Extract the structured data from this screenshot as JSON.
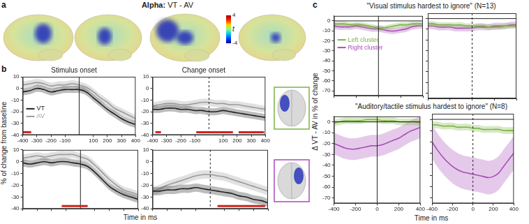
{
  "chart_data": [
    {
      "panel": "a",
      "type": "brain_map",
      "title": "Alpha: VT - AV",
      "colorbar": {
        "range": [
          -4,
          4
        ],
        "ticks": [
          -4,
          4
        ],
        "label": "t"
      }
    },
    {
      "panel": "b",
      "type": "line",
      "title": "Stimulus onset",
      "ylabel": "% of change from baseline",
      "xlabel": "Time in ms",
      "legend": "left",
      "x": [
        -400,
        -350,
        -300,
        -250,
        -200,
        -150,
        -100,
        -50,
        0,
        50,
        100,
        150,
        200,
        250,
        300,
        350,
        400
      ],
      "xlim": [
        -400,
        400
      ],
      "xticks": [
        -400,
        -300,
        -200,
        -100,
        100,
        200,
        300,
        400
      ],
      "ylim": [
        -40,
        10
      ],
      "yticks": [
        -40,
        -30,
        -20,
        -10,
        0,
        10
      ],
      "vlines": [
        {
          "x": 0,
          "line_style": "solid"
        }
      ],
      "significance": [
        [
          -400,
          -340
        ]
      ],
      "series": [
        {
          "name": "VT",
          "color": "#222222",
          "error": 3,
          "values": [
            -3,
            -2,
            0,
            -1,
            -3,
            -2,
            -1,
            -1,
            -1,
            -3,
            -8,
            -13,
            -18,
            -22,
            -26,
            -29,
            -31
          ]
        },
        {
          "name": "AV",
          "color": "#9a9a9a",
          "error": 3,
          "values": [
            3,
            4,
            5,
            4,
            2,
            3,
            3,
            4,
            3,
            1,
            -3,
            -8,
            -12,
            -17,
            -20,
            -23,
            -26
          ]
        }
      ]
    },
    {
      "panel": "b",
      "type": "line",
      "title": "Change onset",
      "x": [
        -400,
        -350,
        -300,
        -250,
        -200,
        -150,
        -100,
        -50,
        0,
        50,
        100,
        150,
        200,
        250,
        300,
        350,
        400
      ],
      "xlim": [
        -400,
        400
      ],
      "xticks": [
        -400,
        -300,
        -200,
        -100,
        100,
        200,
        300,
        400
      ],
      "ylim": [
        -40,
        10
      ],
      "yticks": [
        -40,
        -30,
        -20,
        -10,
        0,
        10
      ],
      "vlines": [
        {
          "x": 0,
          "line_style": "dashed"
        }
      ],
      "significance": [
        [
          -380,
          -340
        ],
        [
          -90,
          170
        ],
        [
          210,
          390
        ]
      ],
      "series": [
        {
          "color": "#222222",
          "error": 3,
          "values": [
            -18,
            -18,
            -17,
            -17,
            -18,
            -18,
            -19,
            -19,
            -20,
            -20,
            -19,
            -20,
            -21,
            -22,
            -23,
            -24,
            -25
          ]
        },
        {
          "color": "#9a9a9a",
          "error": 3,
          "values": [
            -15,
            -14,
            -13,
            -13,
            -14,
            -14,
            -13,
            -12,
            -12,
            -13,
            -13,
            -14,
            -14,
            -15,
            -16,
            -17,
            -18
          ]
        }
      ]
    },
    {
      "panel": "b",
      "type": "line",
      "tick_labels": "y",
      "x": [
        -400,
        -350,
        -300,
        -250,
        -200,
        -150,
        -100,
        -50,
        0,
        50,
        100,
        150,
        200,
        250,
        300,
        350,
        400
      ],
      "xlim": [
        -400,
        400
      ],
      "xticks": [
        -400,
        -300,
        -200,
        -100,
        100,
        200,
        300,
        400
      ],
      "ylim": [
        -40,
        10
      ],
      "yticks": [
        -40,
        -30,
        -20,
        -10,
        0,
        10
      ],
      "vlines": [
        {
          "x": 0,
          "line_style": "solid"
        }
      ],
      "significance": [
        [
          -130,
          50
        ]
      ],
      "series": [
        {
          "color": "#222222",
          "error": 3,
          "values": [
            -1,
            -2,
            -1,
            0,
            -1,
            0,
            0,
            -1,
            -2,
            -4,
            -9,
            -15,
            -21,
            -25,
            -28,
            -30,
            -32
          ]
        },
        {
          "color": "#9a9a9a",
          "error": 3,
          "values": [
            3,
            4,
            5,
            4,
            5,
            6,
            6,
            6,
            4,
            2,
            -3,
            -9,
            -15,
            -20,
            -24,
            -26,
            -28
          ]
        }
      ]
    },
    {
      "panel": "b",
      "type": "line",
      "tick_labels": "y",
      "x": [
        -400,
        -350,
        -300,
        -250,
        -200,
        -150,
        -100,
        -50,
        0,
        50,
        100,
        150,
        200,
        250,
        300,
        350,
        400
      ],
      "xlim": [
        -400,
        400
      ],
      "xticks": [
        -400,
        -300,
        -200,
        -100,
        100,
        200,
        300,
        400
      ],
      "ylim": [
        -40,
        10
      ],
      "yticks": [
        -40,
        -30,
        -20,
        -10,
        0,
        10
      ],
      "vlines": [
        {
          "x": 0,
          "line_style": "dashed"
        }
      ],
      "significance": [
        [
          50,
          380
        ]
      ],
      "series": [
        {
          "color": "#222222",
          "error": 3.5,
          "values": [
            -25,
            -25,
            -24,
            -24,
            -23,
            -23,
            -22,
            -23,
            -24,
            -25,
            -26,
            -27,
            -29,
            -30,
            -32,
            -33,
            -35
          ]
        },
        {
          "color": "#9a9a9a",
          "error": 3.5,
          "values": [
            -25,
            -23,
            -20,
            -18,
            -16,
            -14,
            -12,
            -11,
            -11,
            -12,
            -13,
            -15,
            -17,
            -19,
            -21,
            -23,
            -25
          ]
        }
      ]
    },
    {
      "panel": "c",
      "type": "line",
      "title": "\"Visual stimulus hardest to ignore\" (N=13)",
      "ylabel": "Δ VT - AV in % of change",
      "xlabel": "Time in ms",
      "legend": "upper left",
      "tick_labels": "y",
      "x": [
        -400,
        -350,
        -300,
        -250,
        -200,
        -150,
        -100,
        -50,
        0,
        50,
        100,
        150,
        200,
        250,
        300,
        350,
        400
      ],
      "xlim": [
        -400,
        400
      ],
      "xticks": [
        -400,
        -200,
        0,
        200,
        400
      ],
      "ylim": [
        -75,
        5
      ],
      "yticks": [
        -70,
        -60,
        -50,
        -40,
        -30,
        -20,
        -10,
        0
      ],
      "vlines": [
        {
          "x": 0,
          "line_style": "solid"
        }
      ],
      "hlines": [
        {
          "y": 0,
          "line_style": "solid"
        }
      ],
      "series": [
        {
          "name": "Left cluster",
          "color": "#7cb342",
          "error": 2.5,
          "values": [
            -3,
            -3,
            -3,
            -4,
            -4,
            -4,
            -5,
            -6,
            -7,
            -7,
            -6,
            -5,
            -4,
            -4,
            -3,
            -3,
            -3
          ]
        },
        {
          "name": "Right cluster",
          "color": "#a84cb8",
          "error": 3,
          "values": [
            -5,
            -6,
            -6,
            -6,
            -5,
            -6,
            -7,
            -8,
            -8,
            -9,
            -10,
            -10,
            -9,
            -8,
            -6,
            -5,
            -5
          ]
        }
      ]
    },
    {
      "panel": "c",
      "type": "line",
      "tick_labels": false,
      "x": [
        -400,
        -350,
        -300,
        -250,
        -200,
        -150,
        -100,
        -50,
        0,
        50,
        100,
        150,
        200,
        250,
        300,
        350,
        400
      ],
      "xlim": [
        -400,
        400
      ],
      "xticks": [
        -400,
        -200,
        0,
        200,
        400
      ],
      "ylim": [
        -75,
        5
      ],
      "yticks": [
        -70,
        -60,
        -50,
        -40,
        -30,
        -20,
        -10,
        0
      ],
      "vlines": [
        {
          "x": 0,
          "line_style": "dashed"
        }
      ],
      "hlines": [
        {
          "y": 0,
          "line_style": "solid"
        }
      ],
      "series": [
        {
          "color": "#7cb342",
          "error": 2.5,
          "values": [
            -5,
            -5,
            -6,
            -6,
            -6,
            -6,
            -6,
            -7,
            -7,
            -7,
            -7,
            -8,
            -8,
            -8,
            -7,
            -7,
            -7
          ]
        },
        {
          "color": "#a84cb8",
          "error": 3,
          "values": [
            -7,
            -7,
            -8,
            -8,
            -8,
            -9,
            -9,
            -9,
            -9,
            -8,
            -8,
            -8,
            -7,
            -7,
            -7,
            -6,
            -6
          ]
        }
      ]
    },
    {
      "panel": "c",
      "type": "line",
      "title": "\"Auditory/tactile stimulus hardest to ignore\" (N=8)",
      "x": [
        -400,
        -350,
        -300,
        -250,
        -200,
        -150,
        -100,
        -50,
        0,
        50,
        100,
        150,
        200,
        250,
        300,
        350,
        400
      ],
      "xlim": [
        -400,
        400
      ],
      "xticks": [
        -400,
        -200,
        0,
        200,
        400
      ],
      "ylim": [
        -75,
        5
      ],
      "yticks": [
        -70,
        -60,
        -50,
        -40,
        -30,
        -20,
        -10,
        0
      ],
      "vlines": [
        {
          "x": 0,
          "line_style": "solid"
        }
      ],
      "hlines": [
        {
          "y": 0,
          "line_style": "solid"
        }
      ],
      "series": [
        {
          "color": "#7cb342",
          "error": 3,
          "values": [
            -1,
            0,
            1,
            1,
            1,
            1,
            2,
            2,
            2,
            1,
            1,
            1,
            0,
            0,
            0,
            0,
            -1
          ]
        },
        {
          "color": "#a84cb8",
          "error": 10,
          "values": [
            -20,
            -22,
            -24,
            -25,
            -25,
            -24,
            -23,
            -22,
            -22,
            -21,
            -19,
            -17,
            -15,
            -12,
            -9,
            -7,
            -5
          ]
        }
      ]
    },
    {
      "panel": "c",
      "type": "line",
      "tick_labels": "x",
      "x": [
        -400,
        -350,
        -300,
        -250,
        -200,
        -150,
        -100,
        -50,
        0,
        50,
        100,
        150,
        200,
        250,
        300,
        350,
        400
      ],
      "xlim": [
        -400,
        400
      ],
      "xticks": [
        -400,
        -200,
        0,
        200,
        400
      ],
      "ylim": [
        -75,
        5
      ],
      "yticks": [
        -70,
        -60,
        -50,
        -40,
        -30,
        -20,
        -10,
        0
      ],
      "vlines": [
        {
          "x": 0,
          "line_style": "dashed"
        }
      ],
      "hlines": [
        {
          "y": 0,
          "line_style": "solid"
        }
      ],
      "series": [
        {
          "color": "#7cb342",
          "error": 3,
          "values": [
            -5,
            -5,
            -6,
            -6,
            -6,
            -7,
            -7,
            -7,
            -8,
            -8,
            -9,
            -9,
            -9,
            -9,
            -10,
            -10,
            -10
          ]
        },
        {
          "color": "#a84cb8",
          "error": 15,
          "values": [
            -20,
            -27,
            -33,
            -38,
            -42,
            -45,
            -47,
            -48,
            -49,
            -50,
            -51,
            -52,
            -51,
            -48,
            -42,
            -36,
            -30
          ]
        }
      ]
    }
  ]
}
